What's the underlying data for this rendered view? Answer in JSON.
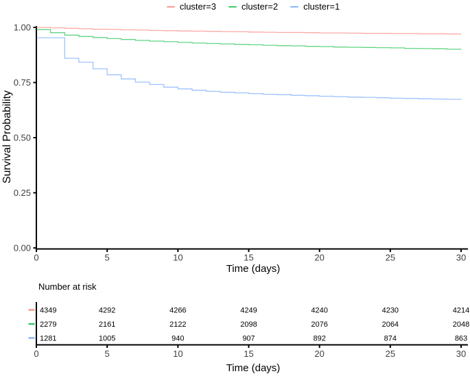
{
  "legend": {
    "items": [
      {
        "label": "cluster=3",
        "color": "#F8766D"
      },
      {
        "label": "cluster=2",
        "color": "#00BA38"
      },
      {
        "label": "cluster=1",
        "color": "#619CFF"
      }
    ]
  },
  "axes": {
    "y_title": "Survival Probability",
    "x_title": "Time (days)",
    "y_tick_labels": [
      "1.00",
      "0.75",
      "0.50",
      "0.25",
      "0.00"
    ],
    "y_tick_values": [
      1.0,
      0.75,
      0.5,
      0.25,
      0.0
    ],
    "x_tick_labels": [
      "0",
      "5",
      "10",
      "15",
      "20",
      "25",
      "30"
    ],
    "x_tick_values": [
      0,
      5,
      10,
      15,
      20,
      25,
      30
    ]
  },
  "risk_table": {
    "title": "Number at risk",
    "x_title": "Time (days)",
    "time_points": [
      0,
      5,
      10,
      15,
      20,
      25,
      30
    ],
    "rows": [
      {
        "name": "cluster=3",
        "color": "#F8766D",
        "counts": [
          "4349",
          "4292",
          "4266",
          "4249",
          "4240",
          "4230",
          "4214"
        ]
      },
      {
        "name": "cluster=2",
        "color": "#00BA38",
        "counts": [
          "2279",
          "2161",
          "2122",
          "2098",
          "2076",
          "2064",
          "2048"
        ]
      },
      {
        "name": "cluster=1",
        "color": "#619CFF",
        "counts": [
          "1281",
          "1005",
          "940",
          "907",
          "892",
          "874",
          "863"
        ]
      }
    ]
  },
  "chart_data": {
    "type": "line",
    "subtype": "kaplan-meier-step",
    "title": "",
    "xlabel": "Time (days)",
    "ylabel": "Survival Probability",
    "xlim": [
      0,
      30
    ],
    "ylim": [
      0.0,
      1.0
    ],
    "grid": false,
    "legend_position": "top",
    "series": [
      {
        "name": "cluster=3",
        "color": "#F8766D",
        "points": [
          [
            0,
            1.0
          ],
          [
            1,
            0.998
          ],
          [
            2,
            0.996
          ],
          [
            3,
            0.994
          ],
          [
            4,
            0.992
          ],
          [
            5,
            0.991
          ],
          [
            6,
            0.989
          ],
          [
            7,
            0.988
          ],
          [
            8,
            0.986
          ],
          [
            9,
            0.985
          ],
          [
            10,
            0.984
          ],
          [
            11,
            0.983
          ],
          [
            12,
            0.982
          ],
          [
            13,
            0.981
          ],
          [
            14,
            0.98
          ],
          [
            15,
            0.979
          ],
          [
            16,
            0.978
          ],
          [
            17,
            0.977
          ],
          [
            18,
            0.977
          ],
          [
            19,
            0.976
          ],
          [
            20,
            0.975
          ],
          [
            21,
            0.975
          ],
          [
            22,
            0.974
          ],
          [
            23,
            0.973
          ],
          [
            24,
            0.973
          ],
          [
            25,
            0.972
          ],
          [
            26,
            0.972
          ],
          [
            27,
            0.971
          ],
          [
            28,
            0.971
          ],
          [
            29,
            0.97
          ],
          [
            30,
            0.97
          ]
        ]
      },
      {
        "name": "cluster=2",
        "color": "#00BA38",
        "points": [
          [
            0,
            0.99
          ],
          [
            1,
            0.976
          ],
          [
            2,
            0.965
          ],
          [
            3,
            0.959
          ],
          [
            4,
            0.954
          ],
          [
            5,
            0.949
          ],
          [
            6,
            0.945
          ],
          [
            7,
            0.941
          ],
          [
            8,
            0.938
          ],
          [
            9,
            0.935
          ],
          [
            10,
            0.932
          ],
          [
            11,
            0.929
          ],
          [
            12,
            0.927
          ],
          [
            13,
            0.925
          ],
          [
            14,
            0.923
          ],
          [
            15,
            0.921
          ],
          [
            16,
            0.919
          ],
          [
            17,
            0.917
          ],
          [
            18,
            0.916
          ],
          [
            19,
            0.914
          ],
          [
            20,
            0.913
          ],
          [
            21,
            0.911
          ],
          [
            22,
            0.91
          ],
          [
            23,
            0.909
          ],
          [
            24,
            0.908
          ],
          [
            25,
            0.907
          ],
          [
            26,
            0.905
          ],
          [
            27,
            0.904
          ],
          [
            28,
            0.903
          ],
          [
            29,
            0.901
          ],
          [
            30,
            0.9
          ]
        ]
      },
      {
        "name": "cluster=1",
        "color": "#619CFF",
        "points": [
          [
            0,
            0.953
          ],
          [
            2,
            0.86
          ],
          [
            3,
            0.842
          ],
          [
            4,
            0.812
          ],
          [
            5,
            0.785
          ],
          [
            6,
            0.766
          ],
          [
            7,
            0.752
          ],
          [
            8,
            0.741
          ],
          [
            9,
            0.729
          ],
          [
            10,
            0.721
          ],
          [
            11,
            0.715
          ],
          [
            12,
            0.71
          ],
          [
            13,
            0.706
          ],
          [
            14,
            0.703
          ],
          [
            15,
            0.7
          ],
          [
            16,
            0.697
          ],
          [
            17,
            0.695
          ],
          [
            18,
            0.692
          ],
          [
            19,
            0.69
          ],
          [
            20,
            0.688
          ],
          [
            21,
            0.686
          ],
          [
            22,
            0.684
          ],
          [
            23,
            0.683
          ],
          [
            24,
            0.681
          ],
          [
            25,
            0.679
          ],
          [
            26,
            0.678
          ],
          [
            27,
            0.676
          ],
          [
            28,
            0.675
          ],
          [
            29,
            0.674
          ],
          [
            30,
            0.673
          ]
        ]
      }
    ],
    "number_at_risk": {
      "time_points": [
        0,
        5,
        10,
        15,
        20,
        25,
        30
      ],
      "cluster=3": [
        4349,
        4292,
        4266,
        4249,
        4240,
        4230,
        4214
      ],
      "cluster=2": [
        2279,
        2161,
        2122,
        2098,
        2076,
        2064,
        2048
      ],
      "cluster=1": [
        1281,
        1005,
        940,
        907,
        892,
        874,
        863
      ]
    }
  }
}
